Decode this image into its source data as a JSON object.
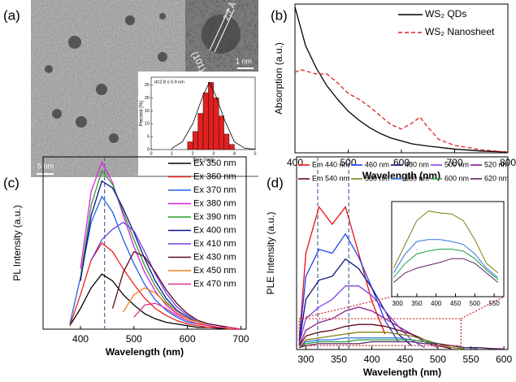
{
  "chart_data": [
    {
      "type": "histogram",
      "panel_label": "(a)",
      "image_annotations": [
        "2.7 Å",
        "1 nm",
        "(101)",
        "5 nm"
      ],
      "annotation": "d=2.8 ± 0.9 nm",
      "xlabel": "Size (nm)",
      "ylabel": "Percent (%)",
      "bins": [
        1.75,
        2.0,
        2.25,
        2.5,
        2.75,
        3.0,
        3.25,
        3.5,
        3.75,
        4.0
      ],
      "values": [
        3,
        7,
        14,
        22,
        26,
        20,
        13,
        6,
        2
      ],
      "color": "#e02020",
      "fit": {
        "x": [
          1,
          1.5,
          2,
          2.5,
          2.8,
          3.1,
          3.5,
          4,
          4.5,
          5
        ],
        "values": [
          0.5,
          3,
          10,
          21,
          26,
          21,
          12,
          3,
          0.5,
          0.1
        ],
        "color": "#000000"
      },
      "xlim": [
        0,
        5
      ],
      "ylim": [
        0,
        28
      ],
      "xticks": [
        0,
        1,
        2,
        3,
        4,
        5
      ],
      "yticks": [
        0,
        5,
        10,
        15,
        20,
        25
      ]
    },
    {
      "type": "line",
      "panel_label": "(b)",
      "xlabel": "Wavelength (nm)",
      "ylabel": "Absorption (a.u.)",
      "xlim": [
        400,
        800
      ],
      "ylim": [
        0,
        1
      ],
      "xticks": [
        400,
        500,
        600,
        700,
        800
      ],
      "series": [
        {
          "name": "WS₂ QDs",
          "color": "#000000",
          "dash": false,
          "x": [
            400,
            420,
            440,
            460,
            480,
            500,
            520,
            540,
            560,
            580,
            600,
            620,
            650,
            700,
            750,
            800
          ],
          "values": [
            0.98,
            0.72,
            0.57,
            0.45,
            0.36,
            0.28,
            0.22,
            0.17,
            0.13,
            0.1,
            0.08,
            0.06,
            0.045,
            0.025,
            0.012,
            0.005
          ]
        },
        {
          "name": "WS₂ Nanosheet",
          "color": "#e02020",
          "dash": true,
          "x": [
            400,
            410,
            420,
            440,
            460,
            480,
            500,
            520,
            540,
            560,
            580,
            600,
            620,
            635,
            650,
            670,
            700,
            750,
            800
          ],
          "values": [
            0.54,
            0.56,
            0.55,
            0.53,
            0.53,
            0.47,
            0.4,
            0.36,
            0.31,
            0.25,
            0.19,
            0.16,
            0.2,
            0.24,
            0.17,
            0.09,
            0.05,
            0.02,
            0.005
          ]
        }
      ]
    },
    {
      "type": "line",
      "panel_label": "(c)",
      "xlabel": "Wavelength (nm)",
      "ylabel": "PL Intensity (a.u.)",
      "xlim": [
        330,
        710
      ],
      "ylim": [
        0,
        1
      ],
      "xticks": [
        400,
        500,
        600,
        700
      ],
      "marker_lines": [
        445
      ],
      "x": [
        360,
        380,
        400,
        420,
        440,
        460,
        480,
        500,
        520,
        540,
        560,
        580,
        600,
        620,
        640,
        660,
        680,
        700
      ],
      "series": [
        {
          "name": "Ex 350 nm",
          "color": "#000000",
          "values": [
            null,
            0.02,
            0.12,
            0.24,
            0.32,
            0.28,
            0.2,
            0.14,
            0.09,
            0.06,
            0.04,
            0.03,
            0.02,
            0.01,
            0.01,
            0.005,
            0,
            0
          ]
        },
        {
          "name": "Ex 360 nm",
          "color": "#e8221c",
          "values": [
            null,
            0.02,
            0.2,
            0.4,
            0.5,
            0.45,
            0.35,
            0.26,
            0.18,
            0.12,
            0.08,
            0.05,
            0.03,
            0.02,
            0.01,
            0.01,
            0,
            0
          ]
        },
        {
          "name": "Ex 370 nm",
          "color": "#2060e8",
          "values": [
            null,
            0.03,
            0.3,
            0.62,
            0.77,
            0.68,
            0.52,
            0.38,
            0.26,
            0.17,
            0.11,
            0.07,
            0.04,
            0.03,
            0.02,
            0.01,
            0.01,
            0
          ]
        },
        {
          "name": "Ex 380 nm",
          "color": "#e020e0",
          "values": [
            null,
            null,
            0.35,
            0.8,
            0.97,
            0.85,
            0.66,
            0.48,
            0.33,
            0.22,
            0.14,
            0.09,
            0.06,
            0.04,
            0.02,
            0.01,
            0.01,
            0
          ]
        },
        {
          "name": "Ex 390 nm",
          "color": "#2aa02a",
          "values": [
            null,
            null,
            0.3,
            0.72,
            0.92,
            0.84,
            0.68,
            0.52,
            0.37,
            0.25,
            0.16,
            0.1,
            0.06,
            0.04,
            0.02,
            0.01,
            0.01,
            0
          ]
        },
        {
          "name": "Ex 400 nm",
          "color": "#10108a",
          "values": [
            null,
            null,
            0.28,
            0.66,
            0.86,
            0.82,
            0.7,
            0.56,
            0.41,
            0.28,
            0.18,
            0.11,
            0.07,
            0.04,
            0.02,
            0.01,
            0.01,
            0
          ]
        },
        {
          "name": "Ex 410 nm",
          "color": "#7040e0",
          "values": [
            null,
            null,
            null,
            0.4,
            0.52,
            0.58,
            0.62,
            0.57,
            0.45,
            0.32,
            0.21,
            0.13,
            0.08,
            0.05,
            0.03,
            0.02,
            0.01,
            0
          ]
        },
        {
          "name": "Ex 430 nm",
          "color": "#5a0a1e",
          "values": [
            null,
            null,
            null,
            null,
            null,
            0.12,
            0.33,
            0.45,
            0.42,
            0.33,
            0.23,
            0.15,
            0.09,
            0.05,
            0.03,
            0.02,
            0.01,
            0
          ]
        },
        {
          "name": "Ex 450 nm",
          "color": "#f08020",
          "values": [
            null,
            null,
            null,
            null,
            null,
            null,
            0.1,
            0.2,
            0.24,
            0.21,
            0.15,
            0.1,
            0.06,
            0.04,
            0.02,
            0.01,
            0.01,
            0
          ]
        },
        {
          "name": "Ex 470 nm",
          "color": "#e0308a",
          "values": [
            null,
            null,
            null,
            null,
            null,
            null,
            null,
            0.07,
            0.14,
            0.15,
            0.12,
            0.08,
            0.05,
            0.03,
            0.02,
            0.01,
            0.01,
            0
          ]
        }
      ]
    },
    {
      "type": "line",
      "panel_label": "(d)",
      "xlabel": "Wavelength (nm)",
      "ylabel": "PLE Intensity (a.u.)",
      "xlim": [
        286,
        606
      ],
      "ylim": [
        0,
        1
      ],
      "xticks": [
        300,
        350,
        400,
        450,
        500,
        550,
        600
      ],
      "marker_lines": [
        318,
        365
      ],
      "zoom_region": {
        "xlim": [
          290,
          535
        ],
        "ylim": [
          0.02,
          0.16
        ],
        "color": "#d02020"
      },
      "x": [
        290,
        300,
        320,
        340,
        360,
        380,
        400,
        420,
        440,
        460,
        480,
        500,
        520,
        540,
        560,
        580,
        600
      ],
      "series": [
        {
          "name": "Em 440 nm",
          "color": "#e81010",
          "values": [
            0.05,
            0.5,
            0.74,
            0.65,
            0.74,
            0.5,
            0.25,
            0.08,
            null,
            null,
            null,
            null,
            null,
            null,
            null,
            null,
            null
          ]
        },
        {
          "name": "460 nm",
          "color": "#2040f0",
          "values": [
            0.04,
            0.38,
            0.52,
            0.5,
            0.6,
            0.48,
            0.32,
            0.15,
            0.04,
            null,
            null,
            null,
            null,
            null,
            null,
            null,
            null
          ]
        },
        {
          "name": "480 nm",
          "color": "#101080",
          "values": [
            0.03,
            0.26,
            0.36,
            0.38,
            0.47,
            0.42,
            0.32,
            0.2,
            0.08,
            0.02,
            null,
            null,
            null,
            null,
            null,
            null,
            null
          ]
        },
        {
          "name": "500 nm",
          "color": "#8040e0",
          "values": [
            0.03,
            0.16,
            0.22,
            0.26,
            0.33,
            0.33,
            0.28,
            0.2,
            0.12,
            0.05,
            0.01,
            null,
            null,
            null,
            null,
            null,
            null
          ]
        },
        {
          "name": "520 nm",
          "color": "#8a1a8a",
          "values": [
            0.02,
            0.1,
            0.14,
            0.16,
            0.2,
            0.22,
            0.2,
            0.16,
            0.12,
            0.08,
            0.04,
            0.01,
            null,
            null,
            null,
            null,
            null
          ]
        },
        {
          "name": "Em 540 nm",
          "color": "#600818",
          "values": [
            0.02,
            0.07,
            0.09,
            0.1,
            0.12,
            0.13,
            0.13,
            0.12,
            0.1,
            0.08,
            0.05,
            0.02,
            0.005,
            null,
            null,
            null,
            null
          ]
        },
        {
          "name": "560 nm",
          "color": "#808010",
          "values": [
            0.01,
            0.05,
            0.06,
            0.07,
            0.08,
            0.09,
            0.09,
            0.09,
            0.08,
            0.07,
            0.05,
            0.03,
            0.01,
            0.005,
            null,
            null,
            null
          ]
        },
        {
          "name": "580 nm",
          "color": "#3070e0",
          "values": [
            0.01,
            0.04,
            0.05,
            0.05,
            0.06,
            0.06,
            0.06,
            0.06,
            0.06,
            0.05,
            0.04,
            0.03,
            0.02,
            0.01,
            0.005,
            null,
            null
          ]
        },
        {
          "name": "600 nm",
          "color": "#20a040",
          "values": [
            0.01,
            0.03,
            0.04,
            0.04,
            0.04,
            0.05,
            0.05,
            0.05,
            0.05,
            0.05,
            0.04,
            0.03,
            0.02,
            0.01,
            0.01,
            0.005,
            null
          ]
        },
        {
          "name": "620 nm",
          "color": "#602060",
          "values": [
            0.01,
            0.02,
            0.03,
            0.03,
            0.03,
            0.03,
            0.04,
            0.04,
            0.04,
            0.04,
            0.03,
            0.03,
            0.02,
            0.01,
            0.01,
            0.005,
            0.003
          ]
        }
      ]
    },
    {
      "type": "line",
      "xlim": [
        285,
        575
      ],
      "ylim": [
        0,
        0.1
      ],
      "xticks": [
        300,
        350,
        400,
        450,
        500,
        550
      ],
      "x": [
        290,
        320,
        350,
        380,
        410,
        440,
        470,
        500,
        530,
        560
      ],
      "series": [
        {
          "color": "#808010",
          "values": [
            0.03,
            0.055,
            0.08,
            0.09,
            0.088,
            0.087,
            0.08,
            0.06,
            0.035,
            0.025
          ]
        },
        {
          "color": "#3070e0",
          "values": [
            0.025,
            0.045,
            0.058,
            0.06,
            0.06,
            0.058,
            0.055,
            0.045,
            0.03,
            0.02
          ]
        },
        {
          "color": "#20a040",
          "values": [
            0.02,
            0.035,
            0.045,
            0.048,
            0.05,
            0.05,
            0.048,
            0.04,
            0.028,
            0.018
          ]
        },
        {
          "color": "#602060",
          "values": [
            0.015,
            0.025,
            0.03,
            0.033,
            0.036,
            0.04,
            0.04,
            0.035,
            0.025,
            0.015
          ]
        }
      ]
    }
  ]
}
